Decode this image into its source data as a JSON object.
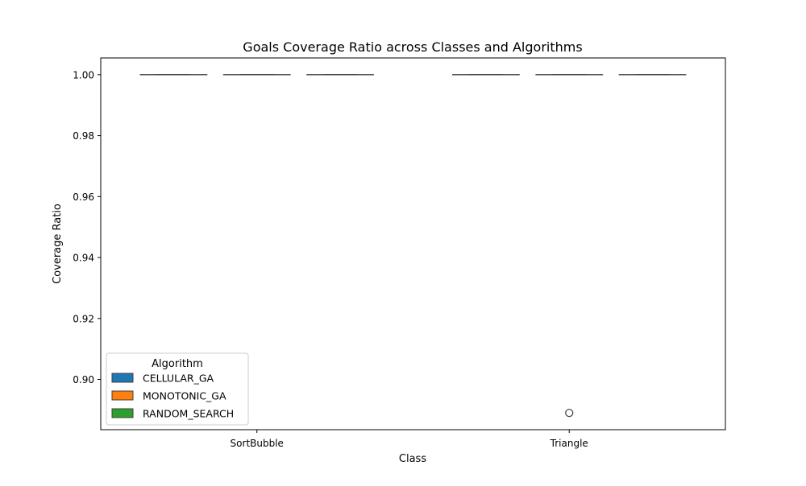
{
  "chart_data": {
    "type": "box",
    "title": "Goals Coverage Ratio across Classes and Algorithms",
    "xlabel": "Class",
    "ylabel": "Coverage Ratio",
    "categories": [
      "SortBubble",
      "Triangle"
    ],
    "ylim": [
      0.8835,
      1.0055
    ],
    "yticks": [
      0.9,
      0.92,
      0.94,
      0.96,
      0.98,
      1.0
    ],
    "ytick_labels": [
      "0.90",
      "0.92",
      "0.94",
      "0.96",
      "0.98",
      "1.00"
    ],
    "grid": false,
    "legend": {
      "title": "Algorithm",
      "placement": "lower-left",
      "entries": [
        "CELLULAR_GA",
        "MONOTONIC_GA",
        "RANDOM_SEARCH"
      ]
    },
    "series": [
      {
        "name": "CELLULAR_GA",
        "color": "#1f77b4",
        "boxes": [
          {
            "category": "SortBubble",
            "min": 1.0,
            "q1": 1.0,
            "median": 1.0,
            "q3": 1.0,
            "max": 1.0,
            "outliers": []
          },
          {
            "category": "Triangle",
            "min": 1.0,
            "q1": 1.0,
            "median": 1.0,
            "q3": 1.0,
            "max": 1.0,
            "outliers": []
          }
        ]
      },
      {
        "name": "MONOTONIC_GA",
        "color": "#ff7f0e",
        "boxes": [
          {
            "category": "SortBubble",
            "min": 1.0,
            "q1": 1.0,
            "median": 1.0,
            "q3": 1.0,
            "max": 1.0,
            "outliers": []
          },
          {
            "category": "Triangle",
            "min": 1.0,
            "q1": 1.0,
            "median": 1.0,
            "q3": 1.0,
            "max": 1.0,
            "outliers": [
              0.889
            ]
          }
        ]
      },
      {
        "name": "RANDOM_SEARCH",
        "color": "#2ca02c",
        "boxes": [
          {
            "category": "SortBubble",
            "min": 1.0,
            "q1": 1.0,
            "median": 1.0,
            "q3": 1.0,
            "max": 1.0,
            "outliers": []
          },
          {
            "category": "Triangle",
            "min": 1.0,
            "q1": 1.0,
            "median": 1.0,
            "q3": 1.0,
            "max": 1.0,
            "outliers": []
          }
        ]
      }
    ]
  }
}
